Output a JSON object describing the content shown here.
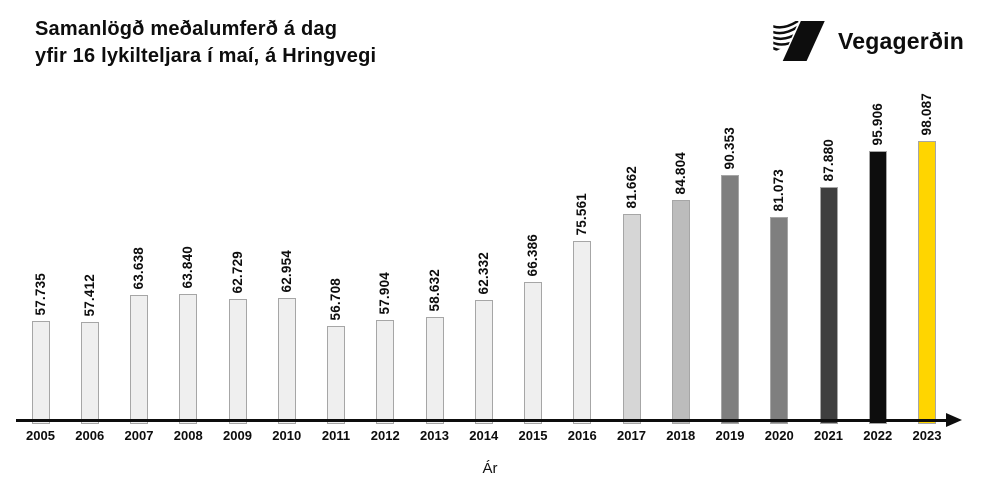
{
  "header": {
    "title_line1": "Samanlögð meðalumferð á dag",
    "title_line2": "yfir 16 lykilteljara í maí, á Hringvegi",
    "logo": {
      "text": "Vegagerðin",
      "icon": "vegagerdin-striped-v-mark"
    }
  },
  "chart_data": {
    "type": "bar",
    "title": "Samanlögð meðalumferð á dag yfir 16 lykilteljara í maí, á Hringvegi",
    "xlabel": "Ár",
    "ylabel": "",
    "categories": [
      "2005",
      "2006",
      "2007",
      "2008",
      "2009",
      "2010",
      "2011",
      "2012",
      "2013",
      "2014",
      "2015",
      "2016",
      "2017",
      "2018",
      "2019",
      "2020",
      "2021",
      "2022",
      "2023"
    ],
    "values": [
      57735,
      57412,
      63638,
      63840,
      62729,
      62954,
      56708,
      57904,
      58632,
      62332,
      66386,
      75561,
      81662,
      84804,
      90353,
      81073,
      87880,
      95906,
      98087
    ],
    "value_labels": [
      "57.735",
      "57.412",
      "63.638",
      "63.840",
      "62.729",
      "62.954",
      "56.708",
      "57.904",
      "58.632",
      "62.332",
      "66.386",
      "75.561",
      "81.662",
      "84.804",
      "90.353",
      "81.073",
      "87.880",
      "95.906",
      "98.087"
    ],
    "bar_colors": [
      "#efefef",
      "#efefef",
      "#efefef",
      "#efefef",
      "#efefef",
      "#efefef",
      "#efefef",
      "#efefef",
      "#efefef",
      "#efefef",
      "#efefef",
      "#efefef",
      "#d6d6d6",
      "#bcbcbc",
      "#7f7f7f",
      "#7f7f7f",
      "#3f3f3f",
      "#0d0d0d",
      "#ffd500"
    ],
    "bar_border_color": "#a6a6a6",
    "axis_color": "#0d0d0d",
    "highlight_color": "#ffd500",
    "grid": false,
    "legend": "none",
    "value_axis_visible": false,
    "ylim_visual": [
      35318,
      98087
    ]
  }
}
